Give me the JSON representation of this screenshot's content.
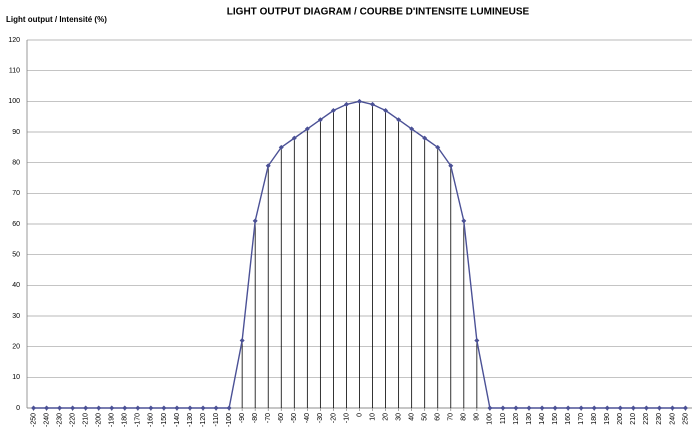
{
  "chart_data": {
    "type": "line",
    "title": "LIGHT OUTPUT DIAGRAM / COURBE D'INTENSITE LUMINEUSE",
    "y_label": "Light output / Intensité (%)",
    "categories": [
      "-250",
      "-240",
      "-230",
      "-220",
      "-210",
      "-200",
      "-190",
      "-180",
      "-170",
      "-160",
      "-150",
      "-140",
      "-130",
      "-120",
      "-110",
      "-100",
      "-90",
      "-80",
      "-70",
      "-60",
      "-50",
      "-40",
      "-30",
      "-20",
      "-10",
      "0",
      "10",
      "20",
      "30",
      "40",
      "50",
      "60",
      "70",
      "80",
      "90",
      "100",
      "110",
      "120",
      "130",
      "140",
      "150",
      "160",
      "170",
      "180",
      "190",
      "200",
      "210",
      "220",
      "230",
      "240",
      "250"
    ],
    "values": [
      0,
      0,
      0,
      0,
      0,
      0,
      0,
      0,
      0,
      0,
      0,
      0,
      0,
      0,
      0,
      0,
      22,
      61,
      79,
      85,
      88,
      91,
      94,
      97,
      99,
      100,
      99,
      97,
      94,
      91,
      88,
      85,
      79,
      61,
      22,
      0,
      0,
      0,
      0,
      0,
      0,
      0,
      0,
      0,
      0,
      0,
      0,
      0,
      0,
      0,
      0
    ],
    "color": "#4b5196",
    "ylim": [
      0,
      120
    ],
    "yticks": [
      0,
      10,
      20,
      30,
      40,
      50,
      60,
      70,
      80,
      90,
      100,
      110,
      120
    ],
    "grid": true,
    "drop_lines": true
  }
}
